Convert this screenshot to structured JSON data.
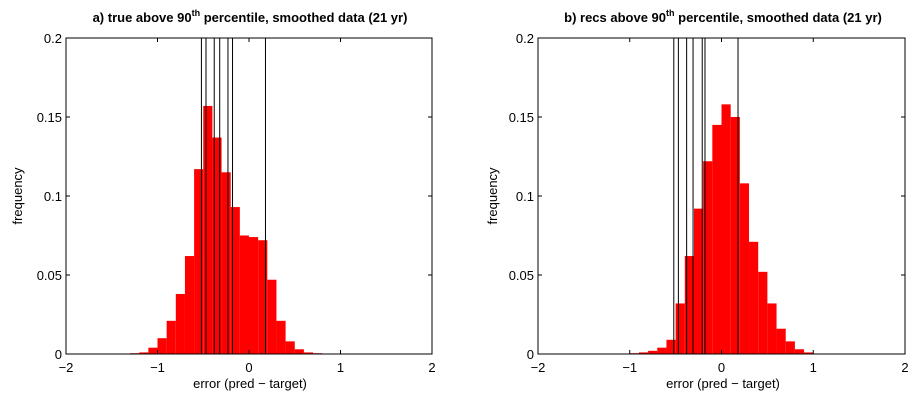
{
  "chart_data": [
    {
      "type": "bar",
      "title_prefix": "a) true above 90",
      "title_sup": "th",
      "title_suffix": " percentile, smoothed data (21 yr)",
      "xlabel": "error (pred − target)",
      "ylabel": "frequency",
      "xlim": [
        -2,
        2
      ],
      "ylim": [
        0,
        0.2
      ],
      "xticks": [
        -2,
        -1,
        0,
        1,
        2
      ],
      "xtick_labels": [
        "−2",
        "−1",
        "0",
        "1",
        "2"
      ],
      "yticks": [
        0,
        0.05,
        0.1,
        0.15,
        0.2
      ],
      "ytick_labels": [
        "0",
        "0.05",
        "0.1",
        "0.15",
        "0.2"
      ],
      "bin_width": 0.1,
      "bin_left_edges": [
        -1.3,
        -1.2,
        -1.1,
        -1.0,
        -0.9,
        -0.8,
        -0.7,
        -0.6,
        -0.5,
        -0.4,
        -0.3,
        -0.2,
        -0.1,
        0.0,
        0.1,
        0.2,
        0.3,
        0.4,
        0.5,
        0.6,
        0.7
      ],
      "values": [
        0.0005,
        0.001,
        0.004,
        0.01,
        0.021,
        0.038,
        0.062,
        0.117,
        0.157,
        0.137,
        0.115,
        0.093,
        0.075,
        0.074,
        0.072,
        0.047,
        0.021,
        0.008,
        0.003,
        0.001,
        0.0005
      ],
      "vlines": [
        -0.52,
        -0.47,
        -0.38,
        -0.32,
        -0.23,
        -0.18,
        0.18
      ],
      "bar_color": "#ff0000"
    },
    {
      "type": "bar",
      "title_prefix": "b) recs above 90",
      "title_sup": "th",
      "title_suffix": " percentile, smoothed data (21 yr)",
      "xlabel": "error (pred − target)",
      "ylabel": "frequency",
      "xlim": [
        -2,
        2
      ],
      "ylim": [
        0,
        0.2
      ],
      "xticks": [
        -2,
        -1,
        0,
        1,
        2
      ],
      "xtick_labels": [
        "−2",
        "−1",
        "0",
        "1",
        "2"
      ],
      "yticks": [
        0,
        0.05,
        0.1,
        0.15,
        0.2
      ],
      "ytick_labels": [
        "0",
        "0.05",
        "0.1",
        "0.15",
        "0.2"
      ],
      "bin_width": 0.1,
      "bin_left_edges": [
        -1.0,
        -0.9,
        -0.8,
        -0.7,
        -0.6,
        -0.5,
        -0.4,
        -0.3,
        -0.2,
        -0.1,
        0.0,
        0.1,
        0.2,
        0.3,
        0.4,
        0.5,
        0.6,
        0.7,
        0.8,
        0.9
      ],
      "values": [
        0.0005,
        0.001,
        0.002,
        0.004,
        0.009,
        0.032,
        0.062,
        0.092,
        0.122,
        0.145,
        0.158,
        0.15,
        0.108,
        0.071,
        0.052,
        0.032,
        0.016,
        0.008,
        0.003,
        0.001
      ],
      "vlines": [
        -0.52,
        -0.47,
        -0.38,
        -0.31,
        -0.21,
        -0.18,
        0.18
      ],
      "bar_color": "#ff0000"
    }
  ]
}
